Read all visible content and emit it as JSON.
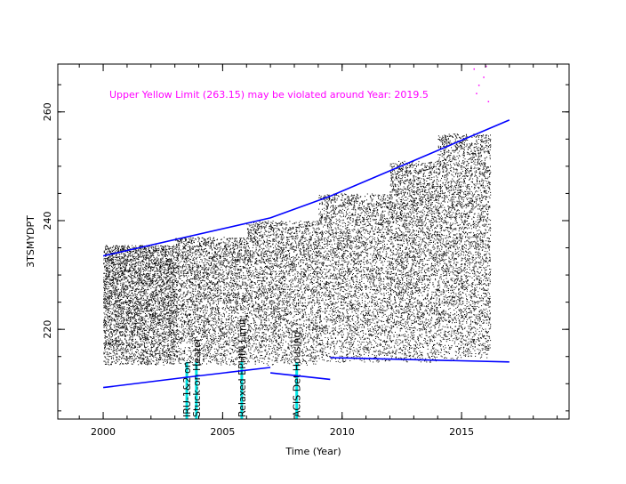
{
  "chart_data": {
    "type": "scatter",
    "title": "",
    "xlabel": "Time (Year)",
    "ylabel": "3TSMYDPT",
    "xlim": [
      1998.1,
      2019.5
    ],
    "ylim": [
      203.5,
      268.8
    ],
    "x_ticks": [
      2000,
      2005,
      2010,
      2015
    ],
    "x_tick_labels": [
      "2000",
      "2005",
      "2010",
      "2015"
    ],
    "y_ticks": [
      220,
      240,
      260
    ],
    "y_tick_labels": [
      "220",
      "240",
      "260"
    ],
    "grid": false,
    "legend": "none",
    "note": "Upper Yellow  Limit (263.15) may be violated around Year: 2019.5",
    "colors": {
      "points": "#000000",
      "trend": "#0000ff",
      "event_line": "#00e5e5",
      "note": "#ff00ff"
    },
    "events": [
      {
        "x": 2003.5,
        "label": "IRU-1&2 on"
      },
      {
        "x": 2003.9,
        "label": "Stuck-on Heater"
      },
      {
        "x": 2005.8,
        "label": "Relaxed EPHIN Limit"
      },
      {
        "x": 2008.1,
        "label": "ACIS Det Housing"
      }
    ],
    "point_clusters": [
      {
        "x": [
          2000.0,
          2003.0
        ],
        "y": [
          213.5,
          235.5
        ],
        "n": 4200
      },
      {
        "x": [
          2003.0,
          2006.0
        ],
        "y": [
          213.5,
          237.0
        ],
        "n": 3000
      },
      {
        "x": [
          2006.0,
          2009.0
        ],
        "y": [
          213.5,
          240.0
        ],
        "n": 3000
      },
      {
        "x": [
          2009.0,
          2012.0
        ],
        "y": [
          214.0,
          245.0
        ],
        "n": 3200
      },
      {
        "x": [
          2012.0,
          2014.0
        ],
        "y": [
          214.0,
          251.0
        ],
        "n": 2800
      },
      {
        "x": [
          2014.0,
          2016.2
        ],
        "y": [
          214.5,
          256.0
        ],
        "n": 3200
      }
    ],
    "series": [
      {
        "x": [
          2000.0,
          2007.0,
          2009.5,
          2017.0
        ],
        "y": [
          233.5,
          240.5,
          244.5,
          258.5
        ]
      },
      {
        "x": [
          2000.0,
          2003.5,
          2007.0
        ],
        "y": [
          209.3,
          211.2,
          213.0
        ]
      },
      {
        "x": [
          2007.0,
          2009.5
        ],
        "y": [
          212.0,
          210.8
        ]
      },
      {
        "x": [
          2009.5,
          2017.0
        ],
        "y": [
          214.8,
          214.0
        ]
      }
    ],
    "violation_points": {
      "x": [
        2015.5,
        2015.7,
        2015.9,
        2016.1,
        2015.6,
        2016.0
      ],
      "y": [
        268.0,
        265.0,
        266.5,
        262.0,
        263.5,
        268.5
      ]
    }
  }
}
